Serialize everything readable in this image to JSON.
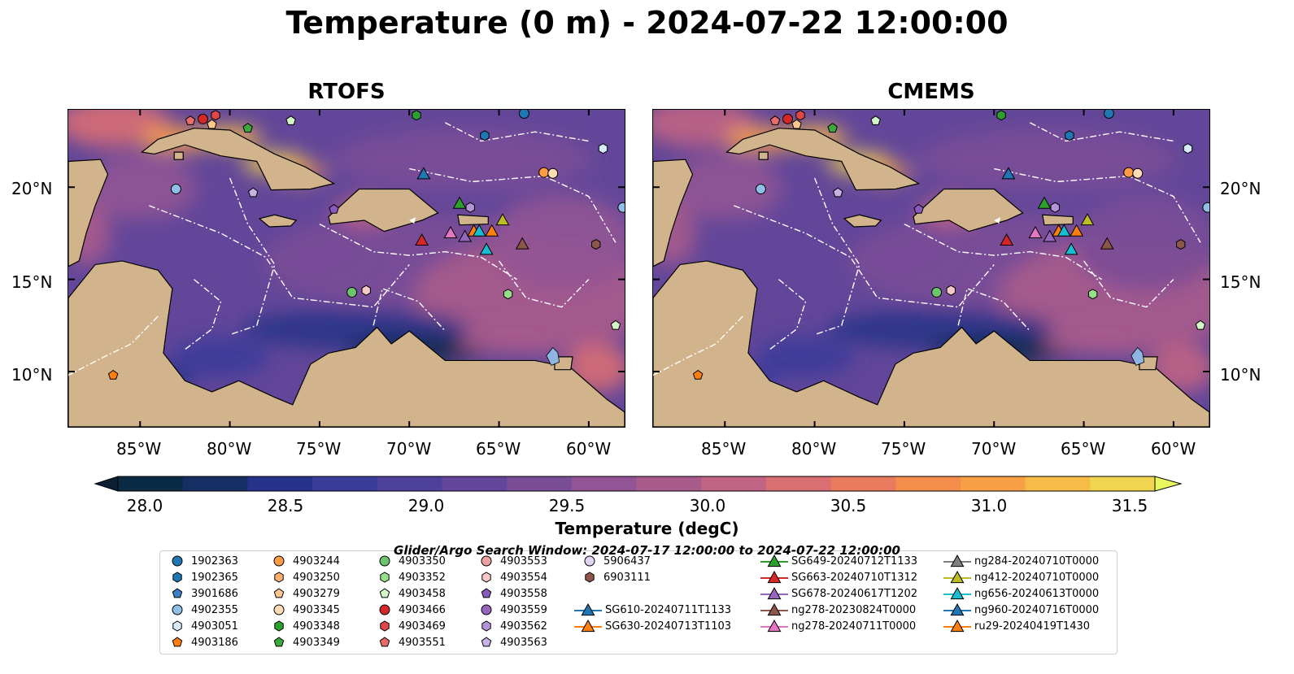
{
  "suptitle": "Temperature (0 m) - 2024-07-22 12:00:00",
  "panels": [
    {
      "title": "RTOFS"
    },
    {
      "title": "CMEMS"
    }
  ],
  "lat_ticks": [
    "20°N",
    "15°N",
    "10°N"
  ],
  "lon_ticks": [
    "85°W",
    "80°W",
    "75°W",
    "70°W",
    "65°W",
    "60°W"
  ],
  "map_extent": {
    "lon": [
      -89,
      -58
    ],
    "lat": [
      7,
      24.2
    ]
  },
  "colorbar": {
    "label": "Temperature (degC)",
    "ticks": [
      "28.0",
      "28.5",
      "29.0",
      "29.5",
      "30.0",
      "30.5",
      "31.0",
      "31.5"
    ],
    "range": [
      28.0,
      31.5
    ],
    "colors": [
      "#0b2a44",
      "#152e63",
      "#27338a",
      "#3a3c9a",
      "#4d419c",
      "#624699",
      "#7a4d97",
      "#925494",
      "#a95b8c",
      "#c16483",
      "#d96e73",
      "#ea7a5e",
      "#f48c4b",
      "#f8a046",
      "#f7bc48",
      "#f2d54e"
    ],
    "under_color": "#0d1f35",
    "over_color": "#e9f75c"
  },
  "land_color": "#d2b48c",
  "legend": {
    "title": "Glider/Argo Search Window: 2024-07-17 12:00:00 to 2024-07-22 12:00:00",
    "argo": [
      {
        "id": "1902363",
        "color": "#1f77b4",
        "marker": "circle"
      },
      {
        "id": "1902365",
        "color": "#1f77b4",
        "marker": "hexagon"
      },
      {
        "id": "3901686",
        "color": "#3b7fc4",
        "marker": "pentagon"
      },
      {
        "id": "4902355",
        "color": "#8fbfe6",
        "marker": "circle"
      },
      {
        "id": "4903051",
        "color": "#d6ebfa",
        "marker": "hexagon"
      },
      {
        "id": "4903186",
        "color": "#ff7f0e",
        "marker": "pentagon"
      },
      {
        "id": "4903244",
        "color": "#ff9a45",
        "marker": "circle"
      },
      {
        "id": "4903250",
        "color": "#ffb070",
        "marker": "hexagon"
      },
      {
        "id": "4903279",
        "color": "#ffc68f",
        "marker": "pentagon"
      },
      {
        "id": "4903345",
        "color": "#ffdcb4",
        "marker": "circle"
      },
      {
        "id": "4903348",
        "color": "#2ca02c",
        "marker": "hexagon"
      },
      {
        "id": "4903349",
        "color": "#3aab3a",
        "marker": "pentagon"
      },
      {
        "id": "4903350",
        "color": "#6cc56c",
        "marker": "circle"
      },
      {
        "id": "4903352",
        "color": "#98df8a",
        "marker": "hexagon"
      },
      {
        "id": "4903458",
        "color": "#d3f5c8",
        "marker": "pentagon"
      },
      {
        "id": "4903466",
        "color": "#d62728",
        "marker": "circle"
      },
      {
        "id": "4903469",
        "color": "#e04848",
        "marker": "hexagon"
      },
      {
        "id": "4903551",
        "color": "#ea6b6b",
        "marker": "pentagon"
      },
      {
        "id": "4903553",
        "color": "#f0a0a0",
        "marker": "circle"
      },
      {
        "id": "4903554",
        "color": "#f8c8c8",
        "marker": "hexagon"
      },
      {
        "id": "4903558",
        "color": "#8a5bbf",
        "marker": "pentagon"
      },
      {
        "id": "4903559",
        "color": "#9467bd",
        "marker": "circle"
      },
      {
        "id": "4903562",
        "color": "#b494d6",
        "marker": "hexagon"
      },
      {
        "id": "4903563",
        "color": "#c7b2e4",
        "marker": "pentagon"
      },
      {
        "id": "5906437",
        "color": "#e4d4f4",
        "marker": "circle"
      },
      {
        "id": "6903111",
        "color": "#8c564b",
        "marker": "hexagon"
      }
    ],
    "gliders": [
      {
        "id": "SG610-20240711T1133",
        "color": "#1f77b4"
      },
      {
        "id": "SG630-20240713T1103",
        "color": "#ff7f0e"
      },
      {
        "id": "SG649-20240712T1133",
        "color": "#2ca02c"
      },
      {
        "id": "SG663-20240710T1312",
        "color": "#d62728"
      },
      {
        "id": "SG678-20240617T1202",
        "color": "#9467bd"
      },
      {
        "id": "ng278-20230824T0000",
        "color": "#8c564b"
      },
      {
        "id": "ng278-20240711T0000",
        "color": "#e377c2"
      },
      {
        "id": "ng284-20240710T0000",
        "color": "#7f7f7f"
      },
      {
        "id": "ng412-20240710T0000",
        "color": "#bcbd22"
      },
      {
        "id": "ng656-20240613T0000",
        "color": "#17becf"
      },
      {
        "id": "ng960-20240716T0000",
        "color": "#1f77b4"
      },
      {
        "id": "ru29-20240419T1430",
        "color": "#ff7f0e"
      }
    ]
  }
}
